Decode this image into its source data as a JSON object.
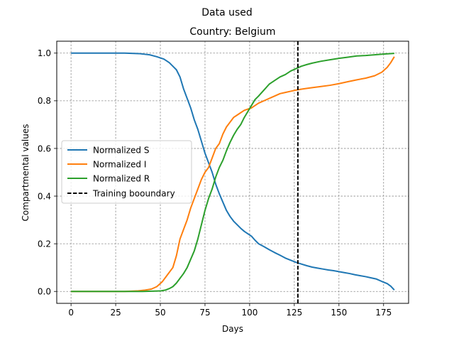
{
  "figure_title": "Data used",
  "chart_data": {
    "type": "line",
    "title": "Country: Belgium",
    "xlabel": "Days",
    "ylabel": "Compartmental values",
    "xlim": [
      -8,
      189
    ],
    "ylim": [
      -0.05,
      1.05
    ],
    "xticks": [
      0,
      25,
      50,
      75,
      100,
      125,
      150,
      175
    ],
    "yticks": [
      0.0,
      0.2,
      0.4,
      0.6,
      0.8,
      1.0
    ],
    "xtick_labels": [
      "0",
      "25",
      "50",
      "75",
      "100",
      "125",
      "150",
      "175"
    ],
    "ytick_labels": [
      "0.0",
      "0.2",
      "0.4",
      "0.6",
      "0.8",
      "1.0"
    ],
    "grid": true,
    "legend_position": "center-left",
    "series": [
      {
        "name": "Normalized S",
        "color": "#1f77b4",
        "style": "solid",
        "points": [
          [
            0,
            1.0
          ],
          [
            10,
            1.0
          ],
          [
            20,
            1.0
          ],
          [
            30,
            1.0
          ],
          [
            38,
            0.998
          ],
          [
            44,
            0.993
          ],
          [
            48,
            0.985
          ],
          [
            52,
            0.975
          ],
          [
            55,
            0.96
          ],
          [
            57,
            0.945
          ],
          [
            59,
            0.93
          ],
          [
            61,
            0.9
          ],
          [
            63,
            0.85
          ],
          [
            65,
            0.81
          ],
          [
            67,
            0.77
          ],
          [
            69,
            0.72
          ],
          [
            71,
            0.68
          ],
          [
            73,
            0.63
          ],
          [
            75,
            0.58
          ],
          [
            77,
            0.54
          ],
          [
            79,
            0.5
          ],
          [
            81,
            0.45
          ],
          [
            83,
            0.41
          ],
          [
            85,
            0.375
          ],
          [
            87,
            0.34
          ],
          [
            89,
            0.315
          ],
          [
            91,
            0.295
          ],
          [
            93,
            0.28
          ],
          [
            95,
            0.265
          ],
          [
            97,
            0.252
          ],
          [
            99,
            0.242
          ],
          [
            101,
            0.232
          ],
          [
            103,
            0.215
          ],
          [
            105,
            0.2
          ],
          [
            108,
            0.188
          ],
          [
            111,
            0.175
          ],
          [
            114,
            0.163
          ],
          [
            117,
            0.152
          ],
          [
            120,
            0.14
          ],
          [
            123,
            0.131
          ],
          [
            126,
            0.122
          ],
          [
            129,
            0.115
          ],
          [
            132,
            0.108
          ],
          [
            135,
            0.102
          ],
          [
            138,
            0.098
          ],
          [
            141,
            0.094
          ],
          [
            144,
            0.09
          ],
          [
            147,
            0.087
          ],
          [
            150,
            0.083
          ],
          [
            153,
            0.079
          ],
          [
            156,
            0.075
          ],
          [
            159,
            0.07
          ],
          [
            162,
            0.066
          ],
          [
            165,
            0.062
          ],
          [
            168,
            0.057
          ],
          [
            171,
            0.052
          ],
          [
            174,
            0.042
          ],
          [
            177,
            0.033
          ],
          [
            179,
            0.022
          ],
          [
            181,
            0.006
          ]
        ]
      },
      {
        "name": "Normalized I",
        "color": "#ff7f0e",
        "style": "solid",
        "points": [
          [
            0,
            0.0
          ],
          [
            10,
            0.0
          ],
          [
            20,
            0.0
          ],
          [
            30,
            0.0
          ],
          [
            37,
            0.002
          ],
          [
            41,
            0.005
          ],
          [
            45,
            0.01
          ],
          [
            48,
            0.02
          ],
          [
            51,
            0.04
          ],
          [
            53,
            0.06
          ],
          [
            55,
            0.08
          ],
          [
            57,
            0.1
          ],
          [
            59,
            0.15
          ],
          [
            61,
            0.22
          ],
          [
            63,
            0.26
          ],
          [
            65,
            0.3
          ],
          [
            67,
            0.35
          ],
          [
            69,
            0.39
          ],
          [
            71,
            0.43
          ],
          [
            73,
            0.47
          ],
          [
            75,
            0.5
          ],
          [
            77,
            0.52
          ],
          [
            79,
            0.56
          ],
          [
            81,
            0.6
          ],
          [
            83,
            0.62
          ],
          [
            85,
            0.66
          ],
          [
            87,
            0.69
          ],
          [
            89,
            0.71
          ],
          [
            91,
            0.73
          ],
          [
            93,
            0.74
          ],
          [
            95,
            0.75
          ],
          [
            97,
            0.76
          ],
          [
            99,
            0.765
          ],
          [
            101,
            0.77
          ],
          [
            103,
            0.78
          ],
          [
            105,
            0.79
          ],
          [
            108,
            0.8
          ],
          [
            111,
            0.81
          ],
          [
            114,
            0.82
          ],
          [
            117,
            0.83
          ],
          [
            120,
            0.835
          ],
          [
            123,
            0.84
          ],
          [
            126,
            0.845
          ],
          [
            130,
            0.85
          ],
          [
            135,
            0.855
          ],
          [
            140,
            0.86
          ],
          [
            145,
            0.865
          ],
          [
            150,
            0.872
          ],
          [
            155,
            0.88
          ],
          [
            160,
            0.888
          ],
          [
            165,
            0.895
          ],
          [
            170,
            0.905
          ],
          [
            174,
            0.92
          ],
          [
            177,
            0.94
          ],
          [
            179,
            0.96
          ],
          [
            181,
            0.985
          ]
        ]
      },
      {
        "name": "Normalized R",
        "color": "#2ca02c",
        "style": "solid",
        "points": [
          [
            0,
            0.0
          ],
          [
            10,
            0.0
          ],
          [
            20,
            0.0
          ],
          [
            30,
            0.0
          ],
          [
            40,
            0.0
          ],
          [
            50,
            0.002
          ],
          [
            53,
            0.006
          ],
          [
            55,
            0.012
          ],
          [
            57,
            0.02
          ],
          [
            59,
            0.035
          ],
          [
            61,
            0.055
          ],
          [
            63,
            0.075
          ],
          [
            65,
            0.1
          ],
          [
            67,
            0.135
          ],
          [
            69,
            0.17
          ],
          [
            71,
            0.22
          ],
          [
            73,
            0.28
          ],
          [
            75,
            0.34
          ],
          [
            77,
            0.39
          ],
          [
            79,
            0.43
          ],
          [
            81,
            0.48
          ],
          [
            83,
            0.52
          ],
          [
            85,
            0.55
          ],
          [
            87,
            0.59
          ],
          [
            89,
            0.625
          ],
          [
            91,
            0.655
          ],
          [
            93,
            0.68
          ],
          [
            95,
            0.7
          ],
          [
            97,
            0.73
          ],
          [
            99,
            0.755
          ],
          [
            101,
            0.78
          ],
          [
            103,
            0.805
          ],
          [
            105,
            0.82
          ],
          [
            108,
            0.845
          ],
          [
            111,
            0.87
          ],
          [
            114,
            0.885
          ],
          [
            117,
            0.9
          ],
          [
            120,
            0.91
          ],
          [
            123,
            0.925
          ],
          [
            126,
            0.935
          ],
          [
            129,
            0.945
          ],
          [
            132,
            0.952
          ],
          [
            135,
            0.958
          ],
          [
            140,
            0.966
          ],
          [
            145,
            0.972
          ],
          [
            150,
            0.978
          ],
          [
            155,
            0.983
          ],
          [
            160,
            0.988
          ],
          [
            165,
            0.99
          ],
          [
            170,
            0.993
          ],
          [
            175,
            0.996
          ],
          [
            181,
            0.999
          ]
        ]
      }
    ],
    "reference_lines": [
      {
        "name": "Training booundary",
        "x": 127,
        "color": "#000000",
        "style": "dashed"
      }
    ],
    "legend": [
      "Normalized S",
      "Normalized I",
      "Normalized R",
      "Training booundary"
    ]
  }
}
